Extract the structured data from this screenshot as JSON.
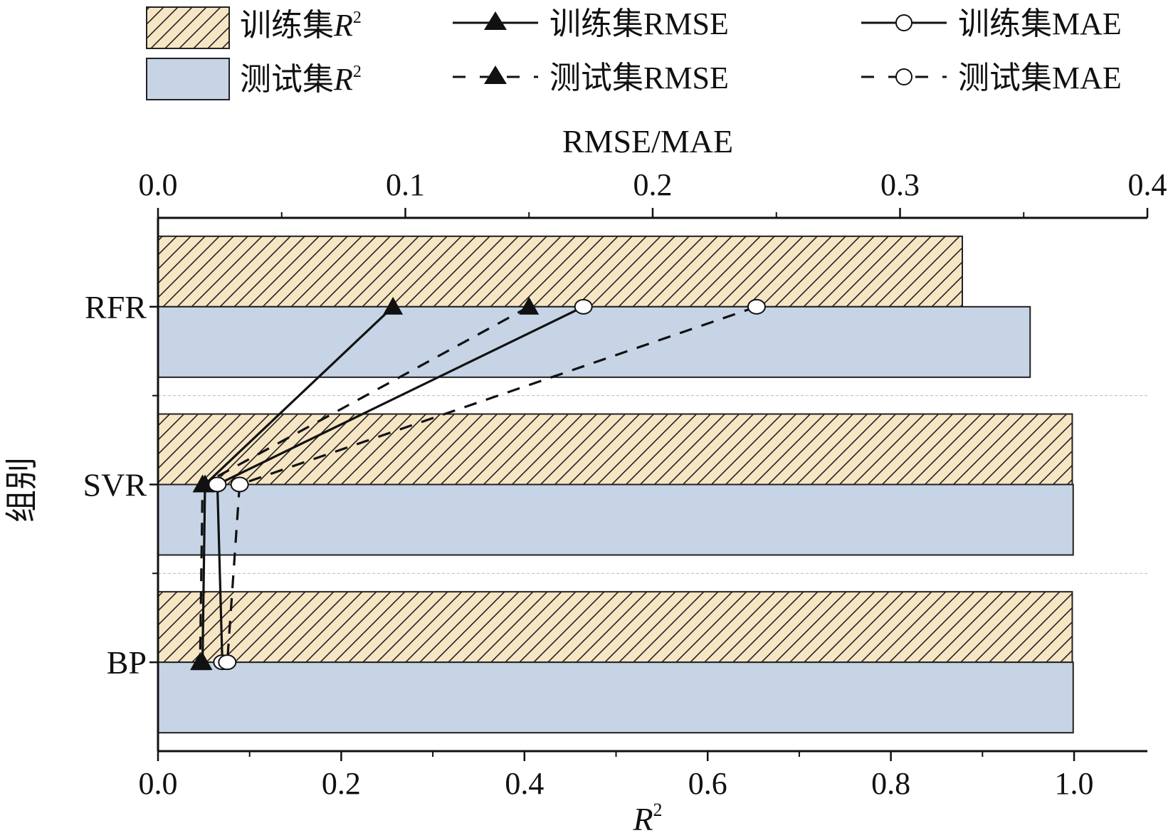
{
  "chart_data": {
    "type": "bar",
    "orientation": "horizontal",
    "categories": [
      "RFR",
      "SVR",
      "BP"
    ],
    "bottom_axis": {
      "label": "R",
      "label_sup": "2",
      "range": [
        0,
        1.08
      ],
      "ticks": [
        "0.0",
        "0.2",
        "0.4",
        "0.6",
        "0.8",
        "1.0"
      ]
    },
    "top_axis": {
      "label": "RMSE/MAE",
      "range": [
        0,
        0.4
      ],
      "ticks": [
        "0.0",
        "0.1",
        "0.2",
        "0.3",
        "0.4"
      ]
    },
    "left_axis": {
      "label": "组别"
    },
    "bar_series": [
      {
        "name": "训练集",
        "name_sup_label": "R",
        "sup": "2",
        "values": [
          0.878,
          0.998,
          0.998
        ],
        "fill": "#f7e6c4",
        "pattern": "hatch"
      },
      {
        "name": "测试集",
        "name_sup_label": "R",
        "sup": "2",
        "values": [
          0.952,
          0.999,
          0.999
        ],
        "fill": "#c6d4e6",
        "pattern": "solid"
      }
    ],
    "line_series": [
      {
        "name": "训练集RMSE",
        "marker": "triangle",
        "dash": "solid",
        "values": [
          0.095,
          0.019,
          0.018
        ]
      },
      {
        "name": "测试集RMSE",
        "marker": "triangle",
        "dash": "dashed",
        "values": [
          0.15,
          0.018,
          0.017
        ]
      },
      {
        "name": "训练集MAE",
        "marker": "circle",
        "dash": "solid",
        "values": [
          0.172,
          0.024,
          0.026
        ]
      },
      {
        "name": "测试集MAE",
        "marker": "circle",
        "dash": "dashed",
        "values": [
          0.242,
          0.033,
          0.028
        ]
      }
    ],
    "legend_position": "top",
    "grid": false
  }
}
